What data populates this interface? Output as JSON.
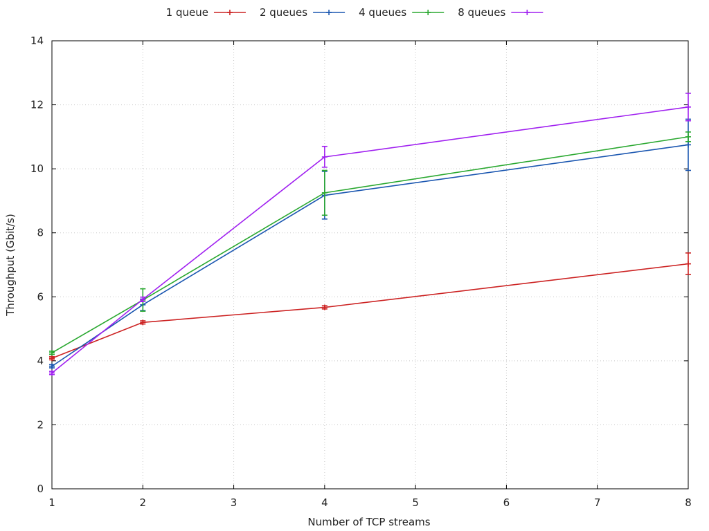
{
  "chart_data": {
    "type": "line",
    "xlabel": "Number of TCP streams",
    "ylabel": "Throughput (Gbit/s)",
    "xlim": [
      1,
      8
    ],
    "ylim": [
      0,
      14
    ],
    "xticks": [
      1,
      2,
      3,
      4,
      5,
      6,
      7,
      8
    ],
    "yticks": [
      0,
      2,
      4,
      6,
      8,
      10,
      12,
      14
    ],
    "grid": true,
    "legend_position": "top-center",
    "series": [
      {
        "name": "1 queue",
        "color": "#cc2222",
        "points": [
          {
            "x": 1,
            "y": 4.08,
            "err_low": 4.03,
            "err_high": 4.13
          },
          {
            "x": 2,
            "y": 5.2,
            "err_low": 5.15,
            "err_high": 5.25
          },
          {
            "x": 4,
            "y": 5.67,
            "err_low": 5.62,
            "err_high": 5.72
          },
          {
            "x": 8,
            "y": 7.03,
            "err_low": 6.7,
            "err_high": 7.37
          }
        ]
      },
      {
        "name": "2 queues",
        "color": "#1a56b0",
        "points": [
          {
            "x": 1,
            "y": 3.83,
            "err_low": 3.78,
            "err_high": 3.88
          },
          {
            "x": 2,
            "y": 5.75,
            "err_low": 5.57,
            "err_high": 5.93
          },
          {
            "x": 4,
            "y": 9.17,
            "err_low": 8.43,
            "err_high": 9.92
          },
          {
            "x": 8,
            "y": 10.75,
            "err_low": 9.95,
            "err_high": 11.55
          }
        ]
      },
      {
        "name": "4 queues",
        "color": "#2aa830",
        "points": [
          {
            "x": 1,
            "y": 4.25,
            "err_low": 4.2,
            "err_high": 4.3
          },
          {
            "x": 2,
            "y": 5.9,
            "err_low": 5.55,
            "err_high": 6.25
          },
          {
            "x": 4,
            "y": 9.25,
            "err_low": 8.55,
            "err_high": 9.95
          },
          {
            "x": 8,
            "y": 11.0,
            "err_low": 10.85,
            "err_high": 11.15
          }
        ]
      },
      {
        "name": "8 queues",
        "color": "#a020f0",
        "points": [
          {
            "x": 1,
            "y": 3.62,
            "err_low": 3.57,
            "err_high": 3.67
          },
          {
            "x": 2,
            "y": 5.92,
            "err_low": 5.85,
            "err_high": 5.99
          },
          {
            "x": 4,
            "y": 10.37,
            "err_low": 10.05,
            "err_high": 10.7
          },
          {
            "x": 8,
            "y": 11.93,
            "err_low": 11.5,
            "err_high": 12.36
          }
        ]
      }
    ]
  }
}
